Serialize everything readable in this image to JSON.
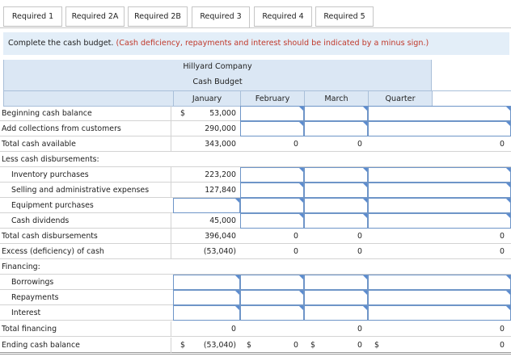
{
  "tabs": [
    {
      "label": "Required 1",
      "active": false
    },
    {
      "label": "Required 2A",
      "active": false
    },
    {
      "label": "Required 2B",
      "active": false
    },
    {
      "label": "Required 3",
      "active": true
    },
    {
      "label": "Required 4",
      "active": false
    },
    {
      "label": "Required 5",
      "active": false
    }
  ],
  "instruction": {
    "main": "Complete the cash budget.",
    "note": "(Cash deficiency, repayments and interest should be indicated by a minus sign.)"
  },
  "table": {
    "company": "Hillyard Company",
    "title": "Cash Budget",
    "columns": [
      "January",
      "February",
      "March",
      "Quarter"
    ],
    "currency": "$",
    "rows": {
      "beginning": {
        "label": "Beginning cash balance",
        "jan": "53,000"
      },
      "collections": {
        "label": "Add collections from customers",
        "jan": "290,000"
      },
      "total_available": {
        "label": "Total cash available",
        "jan": "343,000",
        "feb": "0",
        "mar": "0",
        "qtr": "0"
      },
      "less_disb": {
        "label": "Less cash disbursements:"
      },
      "inventory": {
        "label": "Inventory purchases",
        "jan": "223,200"
      },
      "selling": {
        "label": "Selling and administrative expenses",
        "jan": "127,840"
      },
      "equipment": {
        "label": "Equipment purchases",
        "jan": ""
      },
      "dividends": {
        "label": "Cash dividends",
        "jan": "45,000"
      },
      "total_disb": {
        "label": "Total cash disbursements",
        "jan": "396,040",
        "feb": "0",
        "mar": "0",
        "qtr": "0"
      },
      "excess": {
        "label": "Excess (deficiency) of cash",
        "jan": "(53,040)",
        "feb": "0",
        "mar": "0",
        "qtr": "0"
      },
      "financing": {
        "label": "Financing:"
      },
      "borrowings": {
        "label": "Borrowings"
      },
      "repayments": {
        "label": "Repayments"
      },
      "interest": {
        "label": "Interest"
      },
      "total_fin": {
        "label": "Total financing",
        "jan": "0",
        "feb": "",
        "mar": "0",
        "qtr": "0"
      },
      "ending": {
        "label": "Ending cash balance",
        "jan": "(53,040)",
        "feb": "0",
        "mar": "0",
        "qtr": "0"
      }
    }
  },
  "colors": {
    "header_bg": "#dbe7f4",
    "input_border": "#6e95c8",
    "note_red": "#c0392b",
    "banner_bg": "#e3eef8"
  }
}
